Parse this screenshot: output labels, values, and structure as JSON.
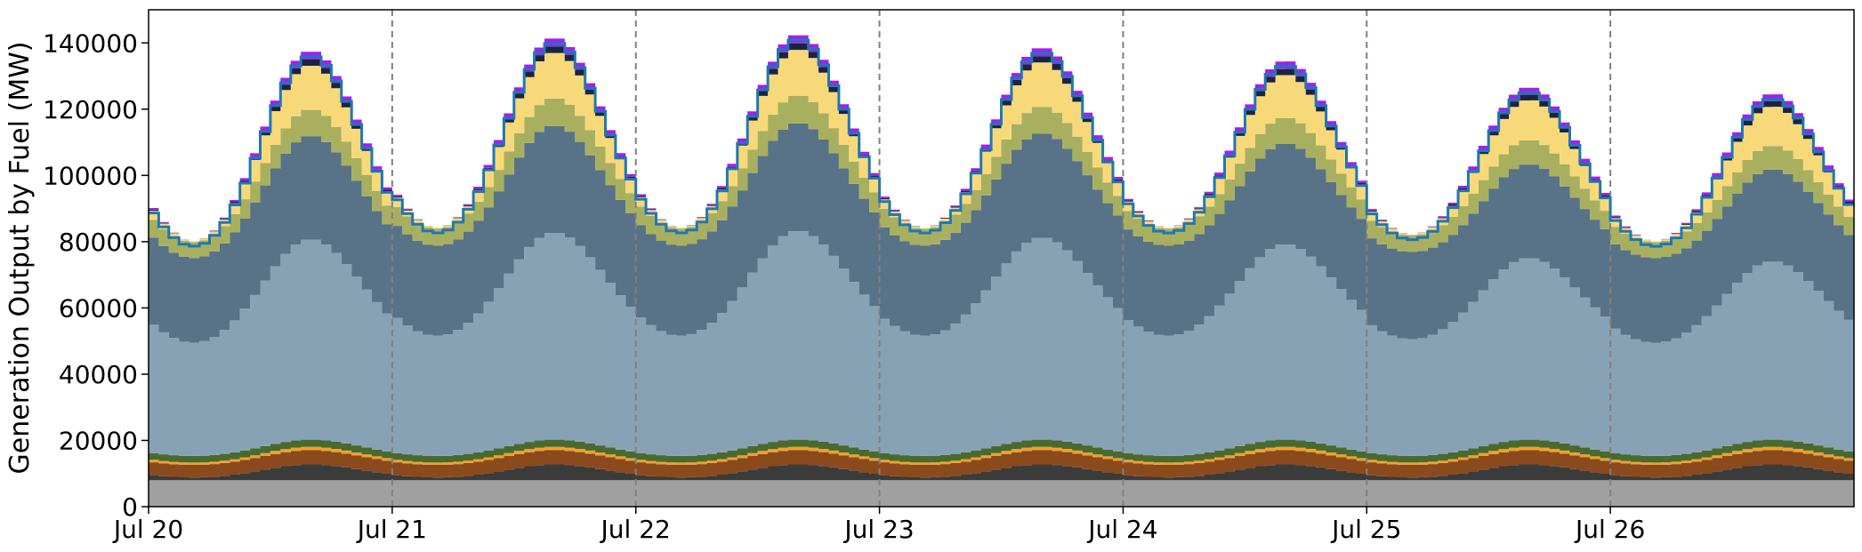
{
  "chart_data": {
    "type": "area",
    "title": "",
    "xlabel": "",
    "ylabel": "Generation Output by Fuel (MW)",
    "ylim": [
      0,
      150000
    ],
    "xlim_days": [
      0,
      7
    ],
    "x_tick_labels": [
      "Jul 20",
      "Jul 21",
      "Jul 22",
      "Jul 23",
      "Jul 24",
      "Jul 25",
      "Jul 26"
    ],
    "y_ticks": [
      0,
      20000,
      40000,
      60000,
      80000,
      100000,
      120000,
      140000
    ],
    "day_separators": [
      "Jul 21",
      "Jul 22",
      "Jul 23",
      "Jul 24",
      "Jul 25",
      "Jul 26"
    ],
    "grid": false,
    "legend": "none",
    "days": [
      "Jul 20",
      "Jul 21",
      "Jul 22",
      "Jul 23",
      "Jul 24",
      "Jul 25",
      "Jul 26"
    ],
    "day_params": [
      {
        "day": "Jul 20",
        "min": 80000,
        "peak": 138000
      },
      {
        "day": "Jul 21",
        "min": 84000,
        "peak": 142000
      },
      {
        "day": "Jul 22",
        "min": 84000,
        "peak": 143000
      },
      {
        "day": "Jul 23",
        "min": 84000,
        "peak": 139000
      },
      {
        "day": "Jul 24",
        "min": 84000,
        "peak": 135000
      },
      {
        "day": "Jul 25",
        "min": 82000,
        "peak": 127000
      },
      {
        "day": "Jul 26",
        "min": 80000,
        "peak": 125000
      }
    ],
    "series": [
      {
        "key": "layer_grey",
        "color": "#a0a0a0",
        "base": 8000,
        "amp": 0
      },
      {
        "key": "layer_black",
        "color": "#3b3b3b",
        "base": 800,
        "amp": 4000
      },
      {
        "key": "layer_brown",
        "color": "#8b4a1c",
        "base": 3800,
        "amp": 500
      },
      {
        "key": "layer_orange",
        "color": "#f0a030",
        "base": 700,
        "amp": 300
      },
      {
        "key": "layer_darkgreen",
        "color": "#486a2e",
        "base": 2000,
        "amp": 200
      },
      {
        "key": "layer_lightblue",
        "color": "#88a2b5",
        "base": 32000,
        "amp": 32000
      },
      {
        "key": "layer_slate",
        "color": "#587387",
        "base": 24000,
        "amp": 9000
      },
      {
        "key": "layer_olive",
        "color": "#a8b060",
        "base": 4500,
        "amp": 4000
      },
      {
        "key": "layer_yellow",
        "color": "#f7d97a",
        "base": 200,
        "amp": 14000
      },
      {
        "key": "layer_navy",
        "color": "#1a2440",
        "base": 0,
        "amp": 2000
      },
      {
        "key": "layer_purple",
        "color": "#a020f0",
        "base": 0,
        "amp": 2500
      }
    ],
    "demand_line": {
      "key": "demand",
      "color": "#1f77b4"
    }
  },
  "colors": {
    "axis": "#000000",
    "separator": "#808080",
    "demand": "#1f77b4"
  }
}
